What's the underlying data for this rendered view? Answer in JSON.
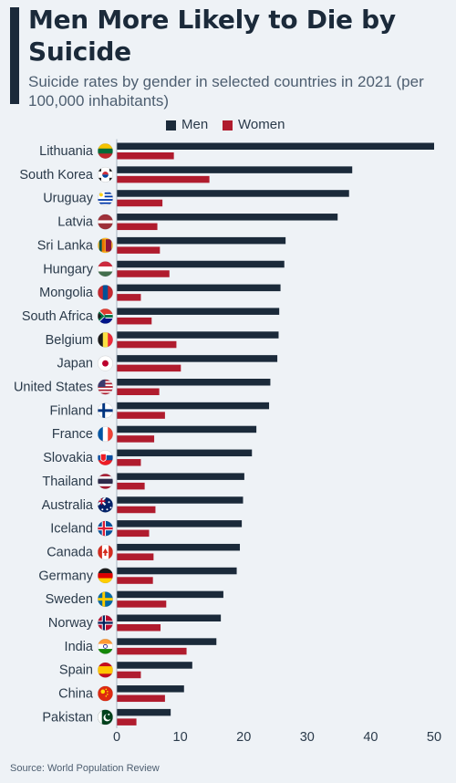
{
  "title": "Men More Likely to Die by Suicide",
  "subtitle": "Suicide rates by gender in selected countries in 2021 (per 100,000 inhabitants)",
  "source": "Source: World Population Review",
  "colors": {
    "men": "#1b2a3a",
    "women": "#b01c2e",
    "background": "#eef2f6",
    "text": "#2a3a4a"
  },
  "chart_data": {
    "type": "bar",
    "orientation": "horizontal",
    "categories": [
      "Lithuania",
      "South Korea",
      "Uruguay",
      "Latvia",
      "Sri Lanka",
      "Hungary",
      "Mongolia",
      "South Africa",
      "Belgium",
      "Japan",
      "United States",
      "Finland",
      "France",
      "Slovakia",
      "Thailand",
      "Australia",
      "Iceland",
      "Canada",
      "Germany",
      "Sweden",
      "Norway",
      "India",
      "Spain",
      "China",
      "Pakistan"
    ],
    "flag_icons": [
      "lithuania-flag-icon",
      "south-korea-flag-icon",
      "uruguay-flag-icon",
      "latvia-flag-icon",
      "sri-lanka-flag-icon",
      "hungary-flag-icon",
      "mongolia-flag-icon",
      "south-africa-flag-icon",
      "belgium-flag-icon",
      "japan-flag-icon",
      "united-states-flag-icon",
      "finland-flag-icon",
      "france-flag-icon",
      "slovakia-flag-icon",
      "thailand-flag-icon",
      "australia-flag-icon",
      "iceland-flag-icon",
      "canada-flag-icon",
      "germany-flag-icon",
      "sweden-flag-icon",
      "norway-flag-icon",
      "india-flag-icon",
      "spain-flag-icon",
      "china-flag-icon",
      "pakistan-flag-icon"
    ],
    "series": [
      {
        "name": "Men",
        "values": [
          50.0,
          37.1,
          36.6,
          34.8,
          26.6,
          26.4,
          25.8,
          25.6,
          25.5,
          25.3,
          24.2,
          24.0,
          22.0,
          21.3,
          20.1,
          19.9,
          19.7,
          19.4,
          18.9,
          16.8,
          16.4,
          15.7,
          11.9,
          10.6,
          8.5
        ]
      },
      {
        "name": "Women",
        "values": [
          9.0,
          14.6,
          7.2,
          6.4,
          6.8,
          8.3,
          3.8,
          5.5,
          9.4,
          10.1,
          6.7,
          7.6,
          5.9,
          3.8,
          4.4,
          6.1,
          5.1,
          5.8,
          5.7,
          7.8,
          6.9,
          11.0,
          3.8,
          7.6,
          3.1
        ]
      }
    ],
    "xlim": [
      0,
      50
    ],
    "xticks": [
      0,
      10,
      20,
      30,
      40,
      50
    ],
    "legend_position": "top-center",
    "grid": false
  }
}
